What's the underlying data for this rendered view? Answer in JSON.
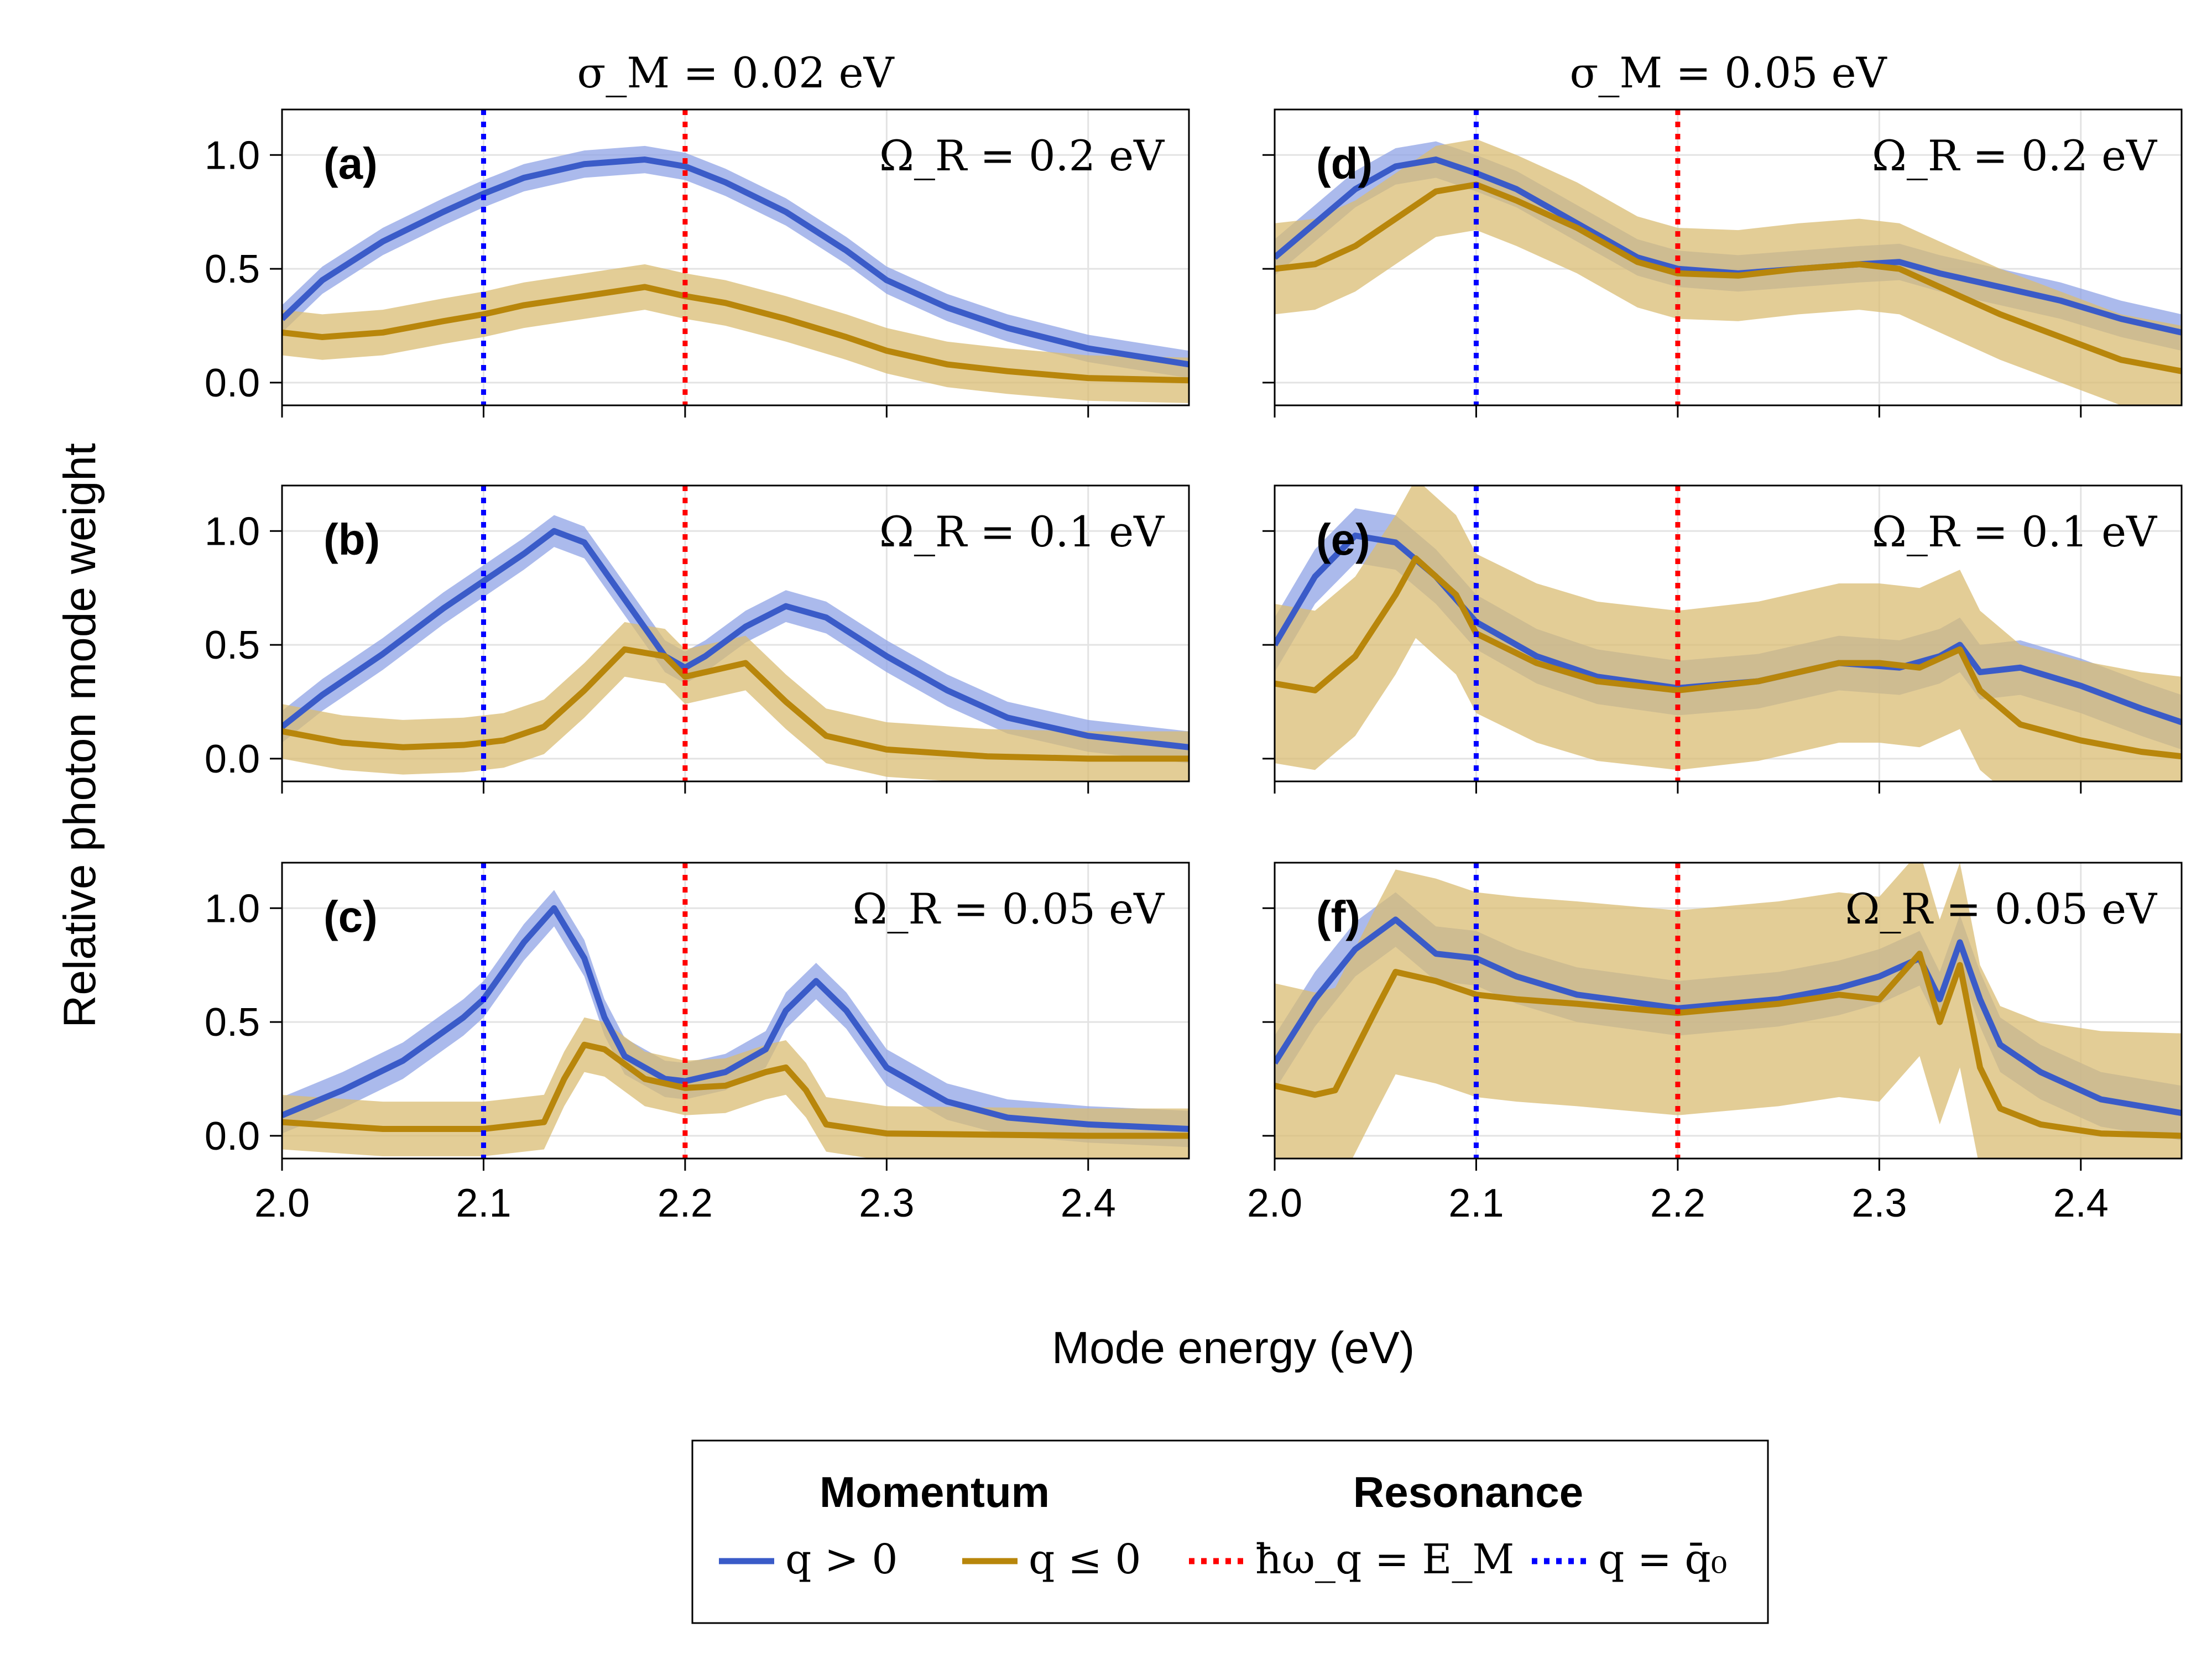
{
  "figure": {
    "ylabel": "Relative photon mode weight",
    "xlabel": "Mode energy (eV)"
  },
  "colors": {
    "q_pos": "#3a5bc8",
    "q_pos_band": "#8fa3e6",
    "q_neg": "#b8860b",
    "q_neg_band": "#d9bc73",
    "resonance": "#ff0000",
    "q0": "#0000ff",
    "grid": "#e3e3e3"
  },
  "legend": {
    "momentum_title": "Momentum",
    "resonance_title": "Resonance",
    "items": [
      {
        "label": "q > 0",
        "style": "solid",
        "color": "#3a5bc8"
      },
      {
        "label": "q ≤ 0",
        "style": "solid",
        "color": "#b8860b"
      },
      {
        "label": "ħω_q = E_M",
        "style": "dotted",
        "color": "#ff0000"
      },
      {
        "label": "q = q̄₀",
        "style": "dotted",
        "color": "#0000ff"
      }
    ]
  },
  "chart_data": [
    {
      "panel": "(a)",
      "column_title": "σ_M = 0.02 eV",
      "annotation": "Ω_R = 0.2 eV",
      "type": "line",
      "xlim": [
        2.0,
        2.45
      ],
      "ylim": [
        -0.1,
        1.2
      ],
      "xticks": [
        "2.0",
        "2.1",
        "2.2",
        "2.3",
        "2.4"
      ],
      "yticks": [
        "0.0",
        "0.5",
        "1.0"
      ],
      "vlines": {
        "q0": 2.1,
        "resonance": 2.2
      },
      "series": [
        {
          "key": "q_pos",
          "x": [
            2.0,
            2.02,
            2.05,
            2.08,
            2.1,
            2.12,
            2.15,
            2.18,
            2.2,
            2.22,
            2.25,
            2.28,
            2.3,
            2.33,
            2.36,
            2.4,
            2.45
          ],
          "y": [
            0.28,
            0.45,
            0.62,
            0.75,
            0.83,
            0.9,
            0.96,
            0.98,
            0.95,
            0.88,
            0.75,
            0.58,
            0.45,
            0.33,
            0.24,
            0.15,
            0.08
          ],
          "band": 0.06
        },
        {
          "key": "q_neg",
          "x": [
            2.0,
            2.02,
            2.05,
            2.08,
            2.1,
            2.12,
            2.15,
            2.18,
            2.2,
            2.22,
            2.25,
            2.28,
            2.3,
            2.33,
            2.36,
            2.4,
            2.45
          ],
          "y": [
            0.22,
            0.2,
            0.22,
            0.27,
            0.3,
            0.34,
            0.38,
            0.42,
            0.38,
            0.35,
            0.28,
            0.2,
            0.14,
            0.08,
            0.05,
            0.02,
            0.01
          ],
          "band": 0.1
        }
      ]
    },
    {
      "panel": "(b)",
      "column_title": "",
      "annotation": "Ω_R = 0.1 eV",
      "type": "line",
      "xlim": [
        2.0,
        2.45
      ],
      "ylim": [
        -0.1,
        1.2
      ],
      "xticks": [
        "2.0",
        "2.1",
        "2.2",
        "2.3",
        "2.4"
      ],
      "yticks": [
        "0.0",
        "0.5",
        "1.0"
      ],
      "vlines": {
        "q0": 2.1,
        "resonance": 2.2
      },
      "series": [
        {
          "key": "q_pos",
          "x": [
            2.0,
            2.02,
            2.05,
            2.08,
            2.1,
            2.12,
            2.135,
            2.15,
            2.17,
            2.19,
            2.2,
            2.21,
            2.23,
            2.25,
            2.27,
            2.3,
            2.33,
            2.36,
            2.4,
            2.45
          ],
          "y": [
            0.14,
            0.28,
            0.46,
            0.66,
            0.78,
            0.9,
            1.0,
            0.95,
            0.7,
            0.45,
            0.4,
            0.45,
            0.58,
            0.67,
            0.62,
            0.45,
            0.3,
            0.18,
            0.1,
            0.05
          ],
          "band": 0.07
        },
        {
          "key": "q_neg",
          "x": [
            2.0,
            2.03,
            2.06,
            2.09,
            2.11,
            2.13,
            2.15,
            2.17,
            2.19,
            2.2,
            2.21,
            2.23,
            2.25,
            2.27,
            2.3,
            2.35,
            2.4,
            2.45
          ],
          "y": [
            0.12,
            0.07,
            0.05,
            0.06,
            0.08,
            0.14,
            0.3,
            0.48,
            0.45,
            0.36,
            0.38,
            0.42,
            0.25,
            0.1,
            0.04,
            0.01,
            0.0,
            0.0
          ],
          "band": 0.12
        }
      ]
    },
    {
      "panel": "(c)",
      "column_title": "",
      "annotation": "Ω_R = 0.05 eV",
      "type": "line",
      "xlim": [
        2.0,
        2.45
      ],
      "ylim": [
        -0.1,
        1.2
      ],
      "xticks": [
        "2.0",
        "2.1",
        "2.2",
        "2.3",
        "2.4"
      ],
      "yticks": [
        "0.0",
        "0.5",
        "1.0"
      ],
      "vlines": {
        "q0": 2.1,
        "resonance": 2.2
      },
      "series": [
        {
          "key": "q_pos",
          "x": [
            2.0,
            2.03,
            2.06,
            2.09,
            2.1,
            2.12,
            2.135,
            2.15,
            2.16,
            2.17,
            2.19,
            2.2,
            2.22,
            2.24,
            2.25,
            2.265,
            2.28,
            2.3,
            2.33,
            2.36,
            2.4,
            2.45
          ],
          "y": [
            0.09,
            0.2,
            0.33,
            0.52,
            0.6,
            0.85,
            1.0,
            0.78,
            0.52,
            0.35,
            0.25,
            0.24,
            0.28,
            0.38,
            0.55,
            0.68,
            0.55,
            0.3,
            0.15,
            0.08,
            0.05,
            0.03
          ],
          "band": 0.08
        },
        {
          "key": "q_neg",
          "x": [
            2.0,
            2.05,
            2.1,
            2.13,
            2.14,
            2.15,
            2.16,
            2.18,
            2.2,
            2.22,
            2.24,
            2.25,
            2.26,
            2.27,
            2.3,
            2.4,
            2.45
          ],
          "y": [
            0.06,
            0.03,
            0.03,
            0.06,
            0.25,
            0.4,
            0.38,
            0.25,
            0.21,
            0.22,
            0.28,
            0.3,
            0.2,
            0.05,
            0.01,
            0.0,
            0.0
          ],
          "band": 0.12
        }
      ]
    },
    {
      "panel": "(d)",
      "column_title": "σ_M = 0.05 eV",
      "annotation": "Ω_R = 0.2 eV",
      "type": "line",
      "xlim": [
        2.0,
        2.45
      ],
      "ylim": [
        -0.1,
        1.2
      ],
      "xticks": [
        "2.0",
        "2.1",
        "2.2",
        "2.3",
        "2.4"
      ],
      "yticks": [
        "0.0",
        "0.5",
        "1.0"
      ],
      "vlines": {
        "q0": 2.1,
        "resonance": 2.2
      },
      "series": [
        {
          "key": "q_pos",
          "x": [
            2.0,
            2.02,
            2.04,
            2.06,
            2.08,
            2.1,
            2.12,
            2.15,
            2.18,
            2.2,
            2.23,
            2.26,
            2.29,
            2.31,
            2.33,
            2.36,
            2.39,
            2.42,
            2.45
          ],
          "y": [
            0.55,
            0.7,
            0.85,
            0.95,
            0.98,
            0.92,
            0.85,
            0.7,
            0.55,
            0.5,
            0.48,
            0.5,
            0.52,
            0.53,
            0.48,
            0.42,
            0.36,
            0.28,
            0.22
          ],
          "band": 0.08
        },
        {
          "key": "q_neg",
          "x": [
            2.0,
            2.02,
            2.04,
            2.06,
            2.08,
            2.1,
            2.12,
            2.15,
            2.18,
            2.2,
            2.23,
            2.26,
            2.29,
            2.31,
            2.33,
            2.36,
            2.39,
            2.42,
            2.45
          ],
          "y": [
            0.5,
            0.52,
            0.6,
            0.72,
            0.84,
            0.87,
            0.8,
            0.68,
            0.53,
            0.48,
            0.47,
            0.5,
            0.52,
            0.5,
            0.42,
            0.3,
            0.2,
            0.1,
            0.05
          ],
          "band": 0.2
        }
      ]
    },
    {
      "panel": "(e)",
      "column_title": "",
      "annotation": "Ω_R = 0.1 eV",
      "type": "line",
      "xlim": [
        2.0,
        2.45
      ],
      "ylim": [
        -0.1,
        1.2
      ],
      "xticks": [
        "2.0",
        "2.1",
        "2.2",
        "2.3",
        "2.4"
      ],
      "yticks": [
        "0.0",
        "0.5",
        "1.0"
      ],
      "vlines": {
        "q0": 2.1,
        "resonance": 2.2
      },
      "series": [
        {
          "key": "q_pos",
          "x": [
            2.0,
            2.02,
            2.04,
            2.06,
            2.08,
            2.1,
            2.13,
            2.16,
            2.2,
            2.24,
            2.28,
            2.31,
            2.33,
            2.34,
            2.35,
            2.37,
            2.4,
            2.43,
            2.45
          ],
          "y": [
            0.5,
            0.8,
            0.98,
            0.95,
            0.8,
            0.6,
            0.45,
            0.36,
            0.31,
            0.34,
            0.42,
            0.4,
            0.45,
            0.5,
            0.38,
            0.4,
            0.32,
            0.22,
            0.16
          ],
          "band": 0.12
        },
        {
          "key": "q_neg",
          "x": [
            2.0,
            2.02,
            2.04,
            2.06,
            2.07,
            2.09,
            2.1,
            2.13,
            2.16,
            2.2,
            2.24,
            2.28,
            2.3,
            2.32,
            2.34,
            2.35,
            2.37,
            2.4,
            2.43,
            2.45
          ],
          "y": [
            0.33,
            0.3,
            0.45,
            0.72,
            0.88,
            0.72,
            0.55,
            0.42,
            0.34,
            0.3,
            0.34,
            0.42,
            0.42,
            0.4,
            0.48,
            0.3,
            0.15,
            0.08,
            0.03,
            0.01
          ],
          "band": 0.35
        }
      ]
    },
    {
      "panel": "(f)",
      "column_title": "",
      "annotation": "Ω_R = 0.05 eV",
      "type": "line",
      "xlim": [
        2.0,
        2.45
      ],
      "ylim": [
        -0.1,
        1.2
      ],
      "xticks": [
        "2.0",
        "2.1",
        "2.2",
        "2.3",
        "2.4"
      ],
      "yticks": [
        "0.0",
        "0.5",
        "1.0"
      ],
      "vlines": {
        "q0": 2.1,
        "resonance": 2.2
      },
      "series": [
        {
          "key": "q_pos",
          "x": [
            2.0,
            2.02,
            2.04,
            2.06,
            2.08,
            2.1,
            2.12,
            2.15,
            2.2,
            2.25,
            2.28,
            2.3,
            2.32,
            2.33,
            2.34,
            2.35,
            2.36,
            2.38,
            2.41,
            2.45
          ],
          "y": [
            0.32,
            0.6,
            0.82,
            0.95,
            0.8,
            0.78,
            0.7,
            0.62,
            0.56,
            0.6,
            0.65,
            0.7,
            0.78,
            0.6,
            0.85,
            0.6,
            0.4,
            0.28,
            0.16,
            0.1
          ],
          "band": 0.12
        },
        {
          "key": "q_neg",
          "x": [
            2.0,
            2.02,
            2.03,
            2.05,
            2.06,
            2.08,
            2.1,
            2.12,
            2.15,
            2.2,
            2.25,
            2.28,
            2.3,
            2.32,
            2.33,
            2.34,
            2.35,
            2.36,
            2.38,
            2.41,
            2.45
          ],
          "y": [
            0.22,
            0.18,
            0.2,
            0.55,
            0.72,
            0.68,
            0.62,
            0.6,
            0.58,
            0.54,
            0.58,
            0.62,
            0.6,
            0.8,
            0.5,
            0.75,
            0.3,
            0.12,
            0.05,
            0.01,
            0.0
          ],
          "band": 0.45
        }
      ]
    }
  ]
}
